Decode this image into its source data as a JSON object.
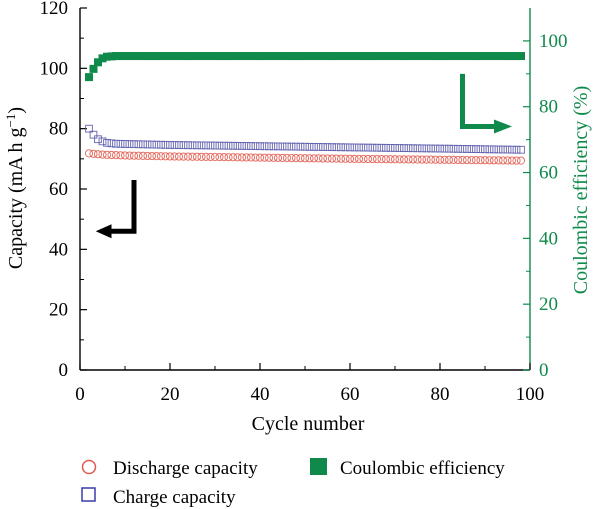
{
  "chart_data": {
    "type": "scatter",
    "xlabel": "Cycle number",
    "ylabel_left": "Capacity (mA h g",
    "ylabel_left_sup": "−1",
    "ylabel_left_close": ")",
    "ylabel_right": "Coulombic efficiency (%)",
    "xlim": [
      0,
      100
    ],
    "ylim_left": [
      0,
      120
    ],
    "ylim_right": [
      0,
      110
    ],
    "x_ticks": [
      0,
      20,
      40,
      60,
      80,
      100
    ],
    "y_left_ticks": [
      0,
      20,
      40,
      60,
      80,
      100,
      120
    ],
    "y_right_ticks": [
      0,
      20,
      40,
      60,
      80,
      100
    ],
    "grid": false,
    "legend_position": "bottom",
    "series": [
      {
        "name": "Discharge capacity",
        "axis": "left",
        "marker": "circle",
        "color": "#e05a4e",
        "x_start": 2,
        "x_end": 98,
        "y_points": [
          [
            2,
            71.8
          ],
          [
            5,
            71.4
          ],
          [
            10,
            71.1
          ],
          [
            20,
            70.8
          ],
          [
            40,
            70.4
          ],
          [
            60,
            70.0
          ],
          [
            80,
            69.7
          ],
          [
            98,
            69.4
          ]
        ]
      },
      {
        "name": "Charge capacity",
        "axis": "left",
        "marker": "square",
        "color": "#5a5aaa",
        "x_start": 2,
        "x_end": 98,
        "y_points": [
          [
            2,
            80.0
          ],
          [
            3,
            78.0
          ],
          [
            4,
            76.5
          ],
          [
            5,
            75.8
          ],
          [
            6,
            75.3
          ],
          [
            8,
            75.0
          ],
          [
            20,
            74.6
          ],
          [
            40,
            74.2
          ],
          [
            60,
            73.8
          ],
          [
            80,
            73.4
          ],
          [
            98,
            73.0
          ]
        ]
      },
      {
        "name": "Coulombic efficiency",
        "axis": "right",
        "marker": "filled-square",
        "color": "#0f8a4a",
        "x_start": 2,
        "x_end": 98,
        "y_points": [
          [
            2,
            89.0
          ],
          [
            3,
            91.5
          ],
          [
            4,
            93.5
          ],
          [
            5,
            94.7
          ],
          [
            6,
            95.2
          ],
          [
            8,
            95.4
          ],
          [
            98,
            95.4
          ]
        ]
      }
    ],
    "colors": {
      "axis_left": "#000000",
      "axis_right": "#0f8a4a",
      "arrow_left": "#000000",
      "arrow_right": "#0f8a4a"
    }
  }
}
